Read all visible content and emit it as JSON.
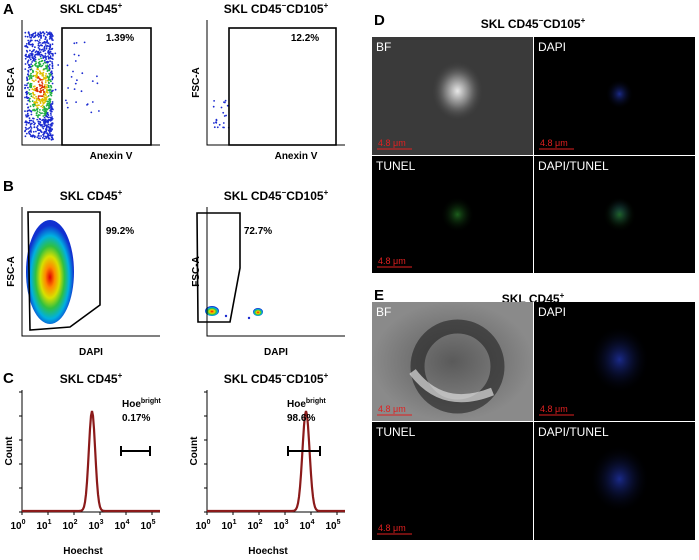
{
  "panel_a": {
    "label": "A",
    "plots": [
      {
        "title": [
          "SKL CD45",
          "+"
        ],
        "y_label": "FSC-A",
        "x_label": "Anexin V",
        "gate": "1.39%"
      },
      {
        "title": [
          "SKL CD45",
          "−",
          "CD105",
          "+"
        ],
        "y_label": "FSC-A",
        "x_label": "Anexin V",
        "gate": "12.2%"
      }
    ]
  },
  "panel_b": {
    "label": "B",
    "plots": [
      {
        "title": [
          "SKL CD45",
          "+"
        ],
        "y_label": "FSC-A",
        "x_label": "DAPI",
        "gate": "99.2%"
      },
      {
        "title": [
          "SKL CD45",
          "−",
          "CD105",
          "+"
        ],
        "y_label": "FSC-A",
        "x_label": "DAPI",
        "gate": "72.7%"
      }
    ]
  },
  "panel_c": {
    "label": "C",
    "plots": [
      {
        "title": [
          "SKL CD45",
          "+"
        ],
        "y_label": "Count",
        "x_label": "Hoechst",
        "gate_name": [
          "Hoe",
          "bright"
        ],
        "gate": "0.17%",
        "x_ticks": [
          {
            "base": "10",
            "exp": "0"
          },
          {
            "base": "10",
            "exp": "1"
          },
          {
            "base": "10",
            "exp": "2"
          },
          {
            "base": "10",
            "exp": "3"
          },
          {
            "base": "10",
            "exp": "4"
          },
          {
            "base": "10",
            "exp": "5"
          }
        ]
      },
      {
        "title": [
          "SKL CD45",
          "−",
          "CD105",
          "+"
        ],
        "y_label": "Count",
        "x_label": "Hoechst",
        "gate_name": [
          "Hoe",
          "bright"
        ],
        "gate": "98.6%",
        "x_ticks": [
          {
            "base": "10",
            "exp": "0"
          },
          {
            "base": "10",
            "exp": "1"
          },
          {
            "base": "10",
            "exp": "2"
          },
          {
            "base": "10",
            "exp": "3"
          },
          {
            "base": "10",
            "exp": "4"
          },
          {
            "base": "10",
            "exp": "5"
          }
        ]
      }
    ]
  },
  "panel_d": {
    "label": "D",
    "title": [
      "SKL CD45",
      "−",
      "CD105",
      "+"
    ],
    "images": [
      {
        "label": "BF",
        "scale": "4.8 μm"
      },
      {
        "label": "DAPI",
        "scale": "4.8 μm"
      },
      {
        "label": "TUNEL",
        "scale": "4.8 μm"
      },
      {
        "label": "DAPI/TUNEL"
      }
    ]
  },
  "panel_e": {
    "label": "E",
    "title": [
      "SKL CD45",
      "+"
    ],
    "images": [
      {
        "label": "BF",
        "scale": "4.8 μm"
      },
      {
        "label": "DAPI",
        "scale": "4.8 μm"
      },
      {
        "label": "TUNEL",
        "scale": "4.8 μm"
      },
      {
        "label": "DAPI/TUNEL"
      }
    ]
  }
}
